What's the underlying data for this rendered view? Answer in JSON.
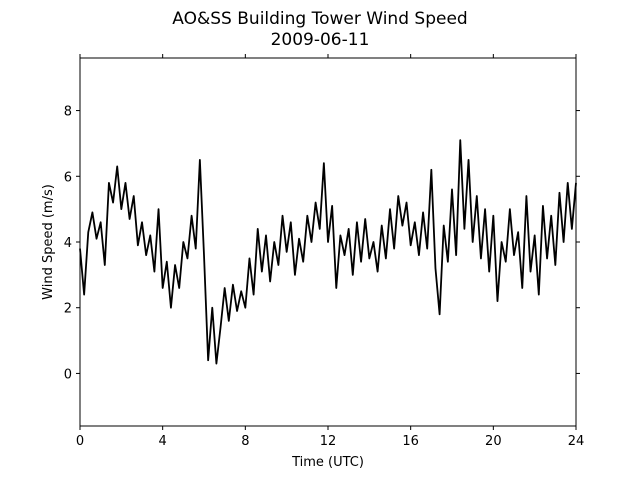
{
  "chart_data": {
    "type": "line",
    "title": "AO&SS Building Tower Wind Speed",
    "subtitle": "2009-06-11",
    "x_label": "Time (UTC)",
    "y_label": "Wind Speed (m/s)",
    "x": [
      0,
      0.2,
      0.4,
      0.6,
      0.8,
      1,
      1.2,
      1.4,
      1.6,
      1.8,
      2,
      2.2,
      2.4,
      2.6,
      2.8,
      3,
      3.2,
      3.4,
      3.6,
      3.8,
      4,
      4.2,
      4.4,
      4.6,
      4.8,
      5,
      5.2,
      5.4,
      5.6,
      5.8,
      6,
      6.2,
      6.4,
      6.6,
      6.8,
      7,
      7.2,
      7.4,
      7.6,
      7.8,
      8,
      8.2,
      8.4,
      8.6,
      8.8,
      9,
      9.2,
      9.4,
      9.6,
      9.8,
      10,
      10.2,
      10.4,
      10.6,
      10.8,
      11,
      11.2,
      11.4,
      11.6,
      11.8,
      12,
      12.2,
      12.4,
      12.6,
      12.8,
      13,
      13.2,
      13.4,
      13.6,
      13.8,
      14,
      14.2,
      14.4,
      14.6,
      14.8,
      15,
      15.2,
      15.4,
      15.6,
      15.8,
      16,
      16.2,
      16.4,
      16.6,
      16.8,
      17,
      17.2,
      17.4,
      17.6,
      17.8,
      18,
      18.2,
      18.4,
      18.6,
      18.8,
      19,
      19.2,
      19.4,
      19.6,
      19.8,
      20,
      20.2,
      20.4,
      20.6,
      20.8,
      21,
      21.2,
      21.4,
      21.6,
      21.8,
      22,
      22.2,
      22.4,
      22.6,
      22.8,
      23,
      23.2,
      23.4,
      23.6,
      23.8,
      24
    ],
    "series": [
      {
        "color": "#000000",
        "values": [
          3.8,
          2.4,
          4.3,
          4.9,
          4.1,
          4.6,
          3.3,
          5.8,
          5.2,
          6.3,
          5.0,
          5.8,
          4.7,
          5.4,
          3.9,
          4.6,
          3.6,
          4.2,
          3.1,
          5.0,
          2.6,
          3.4,
          2.0,
          3.3,
          2.6,
          4.0,
          3.5,
          4.8,
          3.8,
          6.5,
          3.6,
          0.4,
          2.0,
          0.3,
          1.4,
          2.6,
          1.6,
          2.7,
          1.9,
          2.5,
          2.0,
          3.5,
          2.4,
          4.4,
          3.1,
          4.2,
          2.8,
          4.0,
          3.3,
          4.8,
          3.7,
          4.6,
          3.0,
          4.1,
          3.4,
          4.8,
          4.0,
          5.2,
          4.4,
          6.4,
          4.0,
          5.1,
          2.6,
          4.2,
          3.6,
          4.4,
          3.0,
          4.6,
          3.4,
          4.7,
          3.5,
          4.0,
          3.1,
          4.5,
          3.5,
          5.0,
          3.8,
          5.4,
          4.5,
          5.2,
          3.9,
          4.6,
          3.6,
          4.9,
          3.8,
          6.2,
          3.2,
          1.8,
          4.5,
          3.4,
          5.6,
          3.6,
          7.1,
          4.4,
          6.5,
          4.0,
          5.4,
          3.5,
          5.0,
          3.1,
          4.8,
          2.2,
          4.0,
          3.4,
          5.0,
          3.6,
          4.3,
          2.6,
          5.4,
          3.1,
          4.2,
          2.4,
          5.1,
          3.5,
          4.8,
          3.3,
          5.5,
          4.0,
          5.8,
          4.4,
          5.8
        ]
      }
    ],
    "xlim": [
      0,
      24
    ],
    "xticks": [
      0,
      4,
      8,
      12,
      16,
      20,
      24
    ],
    "ylim": [
      -1.6,
      9.6
    ],
    "yticks": [
      0,
      2,
      4,
      6,
      8
    ]
  }
}
